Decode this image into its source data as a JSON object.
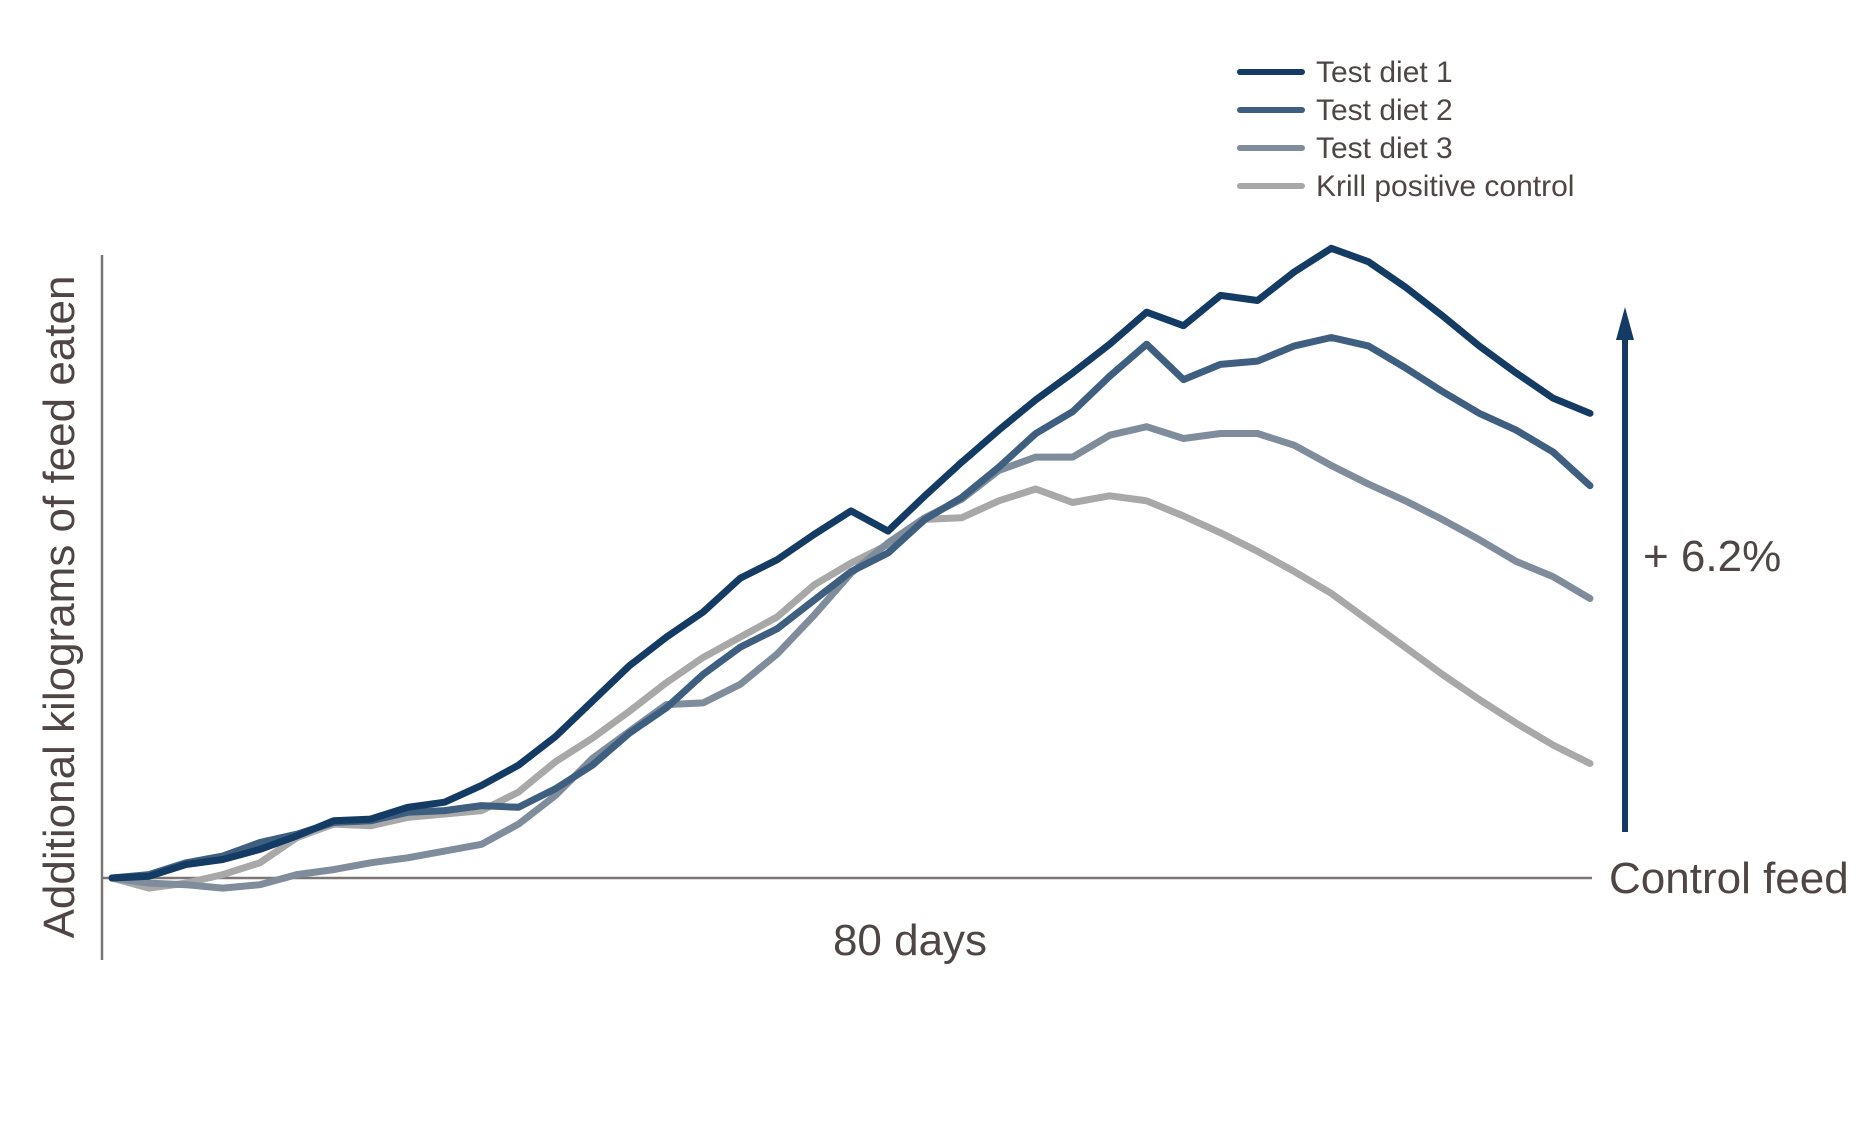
{
  "chart_data": {
    "type": "line",
    "title": "",
    "xlabel": "80 days",
    "ylabel": "Additional kilograms of feed eaten",
    "xlim": [
      0,
      80
    ],
    "ylim": [
      -2,
      37
    ],
    "grid": false,
    "legend_position": "top-right",
    "annotations": {
      "baseline_label": "Control feed",
      "arrow_label": "+ 6.2%"
    },
    "colors": {
      "text": "#4e4644",
      "axis": "#7d7573",
      "arrow": "#143b63"
    },
    "series": [
      {
        "name": "Test diet 1",
        "color": "#143b63",
        "x": [
          0,
          2,
          4,
          6,
          8,
          10,
          12,
          14,
          16,
          18,
          20,
          22,
          24,
          26,
          28,
          30,
          32,
          34,
          36,
          38,
          40,
          42,
          44,
          46,
          48,
          50,
          52,
          54,
          56,
          58,
          60,
          62,
          64,
          66,
          68,
          70,
          72,
          74,
          76,
          78,
          80
        ],
        "values": [
          0,
          0.1,
          0.8,
          1.1,
          1.7,
          2.5,
          3.4,
          3.5,
          4.2,
          4.5,
          5.5,
          6.7,
          8.4,
          10.5,
          12.6,
          14.3,
          15.8,
          17.8,
          18.9,
          20.4,
          21.8,
          20.6,
          22.7,
          24.7,
          26.6,
          28.4,
          30,
          31.7,
          33.6,
          32.8,
          34.6,
          34.3,
          36,
          37.4,
          36.6,
          35.1,
          33.4,
          31.6,
          30,
          28.5,
          27.6
        ]
      },
      {
        "name": "Test diet 2",
        "color": "#3f5f80",
        "x": [
          0,
          2,
          4,
          6,
          8,
          10,
          12,
          14,
          16,
          18,
          20,
          22,
          24,
          26,
          28,
          30,
          32,
          34,
          36,
          38,
          40,
          42,
          44,
          46,
          48,
          50,
          52,
          54,
          56,
          58,
          60,
          62,
          64,
          66,
          68,
          70,
          72,
          74,
          76,
          78,
          80
        ],
        "values": [
          0,
          0.2,
          0.9,
          1.3,
          2.1,
          2.6,
          3.3,
          3.4,
          3.9,
          4,
          4.3,
          4.2,
          5.3,
          6.7,
          8.6,
          10.1,
          12.1,
          13.7,
          14.8,
          16.5,
          18.2,
          19.3,
          21.3,
          22.6,
          24.4,
          26.4,
          27.7,
          29.8,
          31.7,
          29.6,
          30.5,
          30.7,
          31.6,
          32.1,
          31.6,
          30.3,
          28.9,
          27.6,
          26.6,
          25.3,
          23.3
        ]
      },
      {
        "name": "Test diet 3",
        "color": "#7e8c9c",
        "x": [
          0,
          2,
          4,
          6,
          8,
          10,
          12,
          14,
          16,
          18,
          20,
          22,
          24,
          26,
          28,
          30,
          32,
          34,
          36,
          38,
          40,
          42,
          44,
          46,
          48,
          50,
          52,
          54,
          56,
          58,
          60,
          62,
          64,
          66,
          68,
          70,
          72,
          74,
          76,
          78,
          80
        ],
        "values": [
          0,
          -0.3,
          -0.4,
          -0.6,
          -0.4,
          0.2,
          0.5,
          0.9,
          1.2,
          1.6,
          2,
          3.2,
          4.9,
          7.1,
          8.7,
          10.3,
          10.4,
          11.5,
          13.3,
          15.6,
          18.1,
          19.9,
          21.4,
          22.5,
          24.2,
          25,
          25,
          26.3,
          26.8,
          26.1,
          26.4,
          26.4,
          25.7,
          24.5,
          23.4,
          22.4,
          21.3,
          20.1,
          18.8,
          17.9,
          16.6
        ]
      },
      {
        "name": "Krill positive control",
        "color": "#a8a8a8",
        "x": [
          0,
          2,
          4,
          6,
          8,
          10,
          12,
          14,
          16,
          18,
          20,
          22,
          24,
          26,
          28,
          30,
          32,
          34,
          36,
          38,
          40,
          42,
          44,
          46,
          48,
          50,
          52,
          54,
          56,
          58,
          60,
          62,
          64,
          66,
          68,
          70,
          72,
          74,
          76,
          78,
          80
        ],
        "values": [
          0,
          -0.6,
          -0.3,
          0.2,
          0.9,
          2.4,
          3.2,
          3.1,
          3.6,
          3.8,
          4,
          5.1,
          6.9,
          8.3,
          9.9,
          11.6,
          13.1,
          14.3,
          15.5,
          17.4,
          18.7,
          19.8,
          21.3,
          21.4,
          22.4,
          23.1,
          22.3,
          22.7,
          22.4,
          21.5,
          20.5,
          19.4,
          18.2,
          16.9,
          15.3,
          13.7,
          12.1,
          10.6,
          9.2,
          7.9,
          6.8
        ]
      }
    ]
  }
}
